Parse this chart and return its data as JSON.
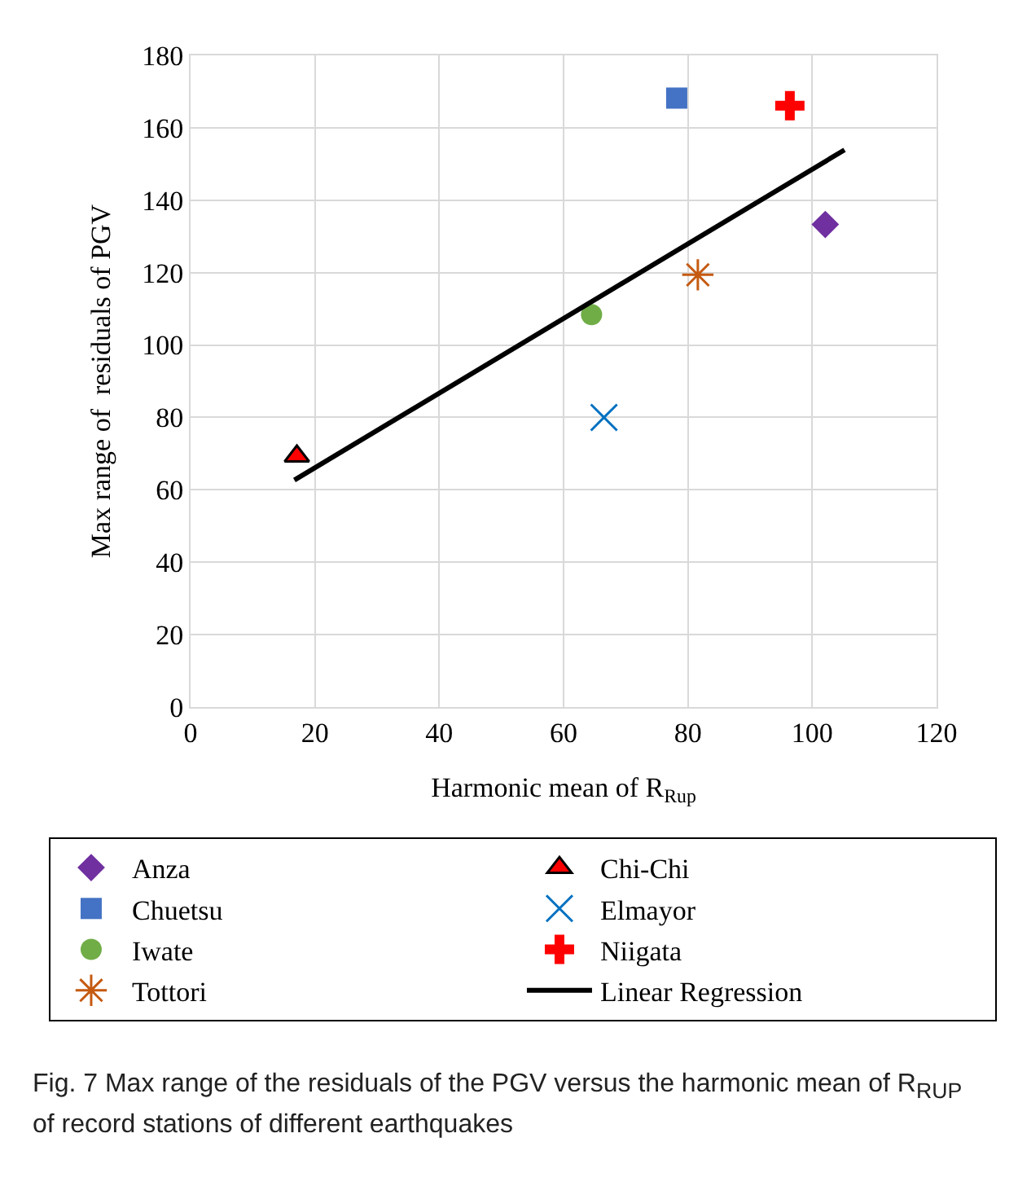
{
  "chart_data": {
    "type": "scatter",
    "xlabel": "Harmonic mean of R$_{Rup}$",
    "ylabel": "Max range of  residuals of PGV",
    "xlim": [
      0,
      120
    ],
    "xticks": [
      0,
      20,
      40,
      60,
      80,
      100,
      120
    ],
    "ylim": [
      0,
      180
    ],
    "yticks": [
      0,
      20,
      40,
      60,
      80,
      100,
      120,
      140,
      160,
      180
    ],
    "grid": true,
    "legend": "bottom",
    "series": [
      {
        "name": "Anza",
        "color": "#7030a0",
        "marker": "diamond",
        "x": [
          102.1
        ],
        "values": [
          133.3
        ]
      },
      {
        "name": "Chi-Chi",
        "color": "#ff0000",
        "marker": "triangle",
        "x": [
          17.1
        ],
        "values": [
          69.3
        ]
      },
      {
        "name": "Chuetsu",
        "color": "#4472c4",
        "marker": "square",
        "x": [
          78.2
        ],
        "values": [
          168.2
        ]
      },
      {
        "name": "Elmayor",
        "color": "#0070c0",
        "marker": "x",
        "x": [
          66.5
        ],
        "values": [
          80.0
        ]
      },
      {
        "name": "Iwate",
        "color": "#70ad47",
        "marker": "circle",
        "x": [
          64.5
        ],
        "values": [
          108.4
        ]
      },
      {
        "name": "Niigata",
        "color": "#ff0000",
        "marker": "cross",
        "x": [
          96.4
        ],
        "values": [
          166.1
        ]
      },
      {
        "name": "Tottori",
        "color": "#c55a11",
        "marker": "cross",
        "x": [
          81.6
        ],
        "values": [
          119.4
        ]
      },
      {
        "name": "Linear Regression",
        "type": "line",
        "color": "#000000",
        "marker": "none",
        "line_style": "solid",
        "x": [
          16.7,
          105.2
        ],
        "values": [
          62.7,
          153.9
        ]
      }
    ],
    "annotations": [
      "Fig. 7  Max range of the residuals of the PGV versus the harmonic mean of R$_{RUP}$ of record stations of different earthquakes"
    ]
  }
}
